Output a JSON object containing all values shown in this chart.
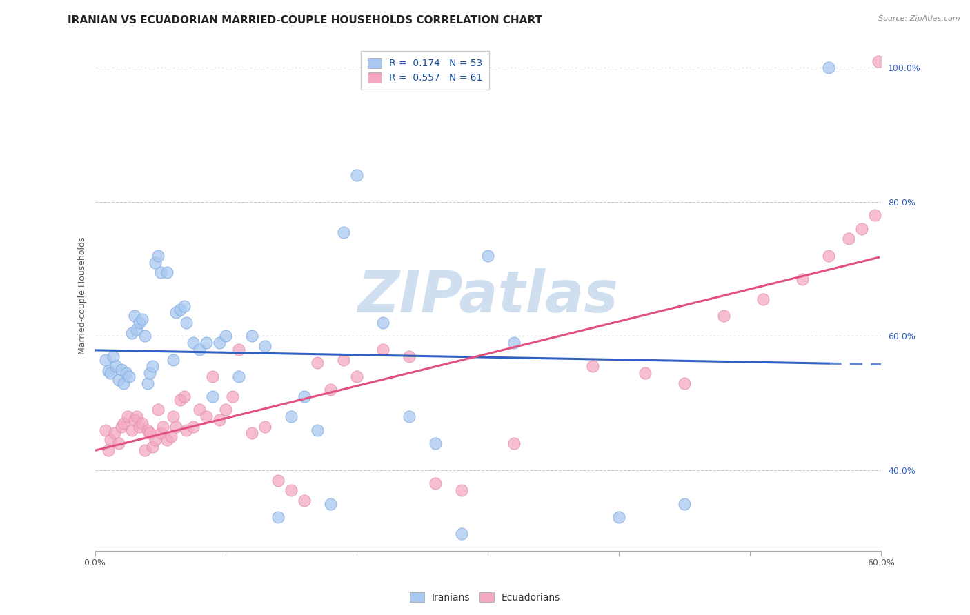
{
  "title": "IRANIAN VS ECUADORIAN MARRIED-COUPLE HOUSEHOLDS CORRELATION CHART",
  "source": "Source: ZipAtlas.com",
  "ylabel": "Married-couple Households",
  "x_min": 0.0,
  "x_max": 0.6,
  "y_min": 0.28,
  "y_max": 1.04,
  "x_ticks": [
    0.0,
    0.1,
    0.2,
    0.3,
    0.4,
    0.5,
    0.6
  ],
  "x_tick_labels": [
    "0.0%",
    "",
    "",
    "",
    "",
    "",
    "60.0%"
  ],
  "y_ticks": [
    0.4,
    0.6,
    0.8,
    1.0
  ],
  "y_tick_labels": [
    "40.0%",
    "60.0%",
    "80.0%",
    "100.0%"
  ],
  "watermark": "ZIPatlas",
  "legend_iranian_label": "R =  0.174   N = 53",
  "legend_ecuadorian_label": "R =  0.557   N = 61",
  "iranian_color": "#a8c8f0",
  "ecuadorian_color": "#f4a8c0",
  "iranian_line_color": "#3060c0",
  "ecuadorian_line_color": "#e05080",
  "iranian_scatter_x": [
    0.008,
    0.01,
    0.012,
    0.014,
    0.016,
    0.018,
    0.02,
    0.022,
    0.024,
    0.026,
    0.028,
    0.03,
    0.032,
    0.034,
    0.036,
    0.038,
    0.04,
    0.042,
    0.044,
    0.046,
    0.048,
    0.05,
    0.055,
    0.06,
    0.062,
    0.065,
    0.068,
    0.07,
    0.075,
    0.08,
    0.085,
    0.09,
    0.095,
    0.1,
    0.11,
    0.12,
    0.13,
    0.14,
    0.15,
    0.16,
    0.17,
    0.18,
    0.19,
    0.2,
    0.22,
    0.24,
    0.26,
    0.28,
    0.3,
    0.32,
    0.4,
    0.45,
    0.56
  ],
  "iranian_scatter_y": [
    0.565,
    0.548,
    0.545,
    0.57,
    0.555,
    0.535,
    0.55,
    0.53,
    0.545,
    0.54,
    0.605,
    0.63,
    0.61,
    0.62,
    0.625,
    0.6,
    0.53,
    0.545,
    0.555,
    0.71,
    0.72,
    0.695,
    0.695,
    0.565,
    0.635,
    0.64,
    0.645,
    0.62,
    0.59,
    0.58,
    0.59,
    0.51,
    0.59,
    0.6,
    0.54,
    0.6,
    0.585,
    0.33,
    0.48,
    0.51,
    0.46,
    0.35,
    0.755,
    0.84,
    0.62,
    0.48,
    0.44,
    0.305,
    0.72,
    0.59,
    0.33,
    0.35,
    1.0
  ],
  "ecuadorian_scatter_x": [
    0.008,
    0.01,
    0.012,
    0.015,
    0.018,
    0.02,
    0.022,
    0.025,
    0.028,
    0.03,
    0.032,
    0.034,
    0.036,
    0.038,
    0.04,
    0.042,
    0.044,
    0.046,
    0.048,
    0.05,
    0.052,
    0.055,
    0.058,
    0.06,
    0.062,
    0.065,
    0.068,
    0.07,
    0.075,
    0.08,
    0.085,
    0.09,
    0.095,
    0.1,
    0.105,
    0.11,
    0.12,
    0.13,
    0.14,
    0.15,
    0.16,
    0.17,
    0.18,
    0.19,
    0.2,
    0.22,
    0.24,
    0.26,
    0.28,
    0.32,
    0.38,
    0.42,
    0.45,
    0.48,
    0.51,
    0.54,
    0.56,
    0.575,
    0.585,
    0.595,
    0.598
  ],
  "ecuadorian_scatter_y": [
    0.46,
    0.43,
    0.445,
    0.455,
    0.44,
    0.465,
    0.47,
    0.48,
    0.46,
    0.475,
    0.48,
    0.465,
    0.47,
    0.43,
    0.46,
    0.455,
    0.435,
    0.445,
    0.49,
    0.455,
    0.465,
    0.445,
    0.45,
    0.48,
    0.465,
    0.505,
    0.51,
    0.46,
    0.465,
    0.49,
    0.48,
    0.54,
    0.475,
    0.49,
    0.51,
    0.58,
    0.455,
    0.465,
    0.385,
    0.37,
    0.355,
    0.56,
    0.52,
    0.565,
    0.54,
    0.58,
    0.57,
    0.38,
    0.37,
    0.44,
    0.555,
    0.545,
    0.53,
    0.63,
    0.655,
    0.685,
    0.72,
    0.745,
    0.76,
    0.78,
    1.01
  ],
  "background_color": "#ffffff",
  "grid_color": "#cccccc",
  "title_fontsize": 11,
  "axis_label_fontsize": 9,
  "tick_fontsize": 9,
  "legend_fontsize": 10,
  "watermark_color": "#d0dff0",
  "watermark_fontsize": 60,
  "iranian_R": 0.174,
  "ecuadorian_R": 0.557,
  "iranian_N": 53,
  "ecuadorian_N": 61
}
